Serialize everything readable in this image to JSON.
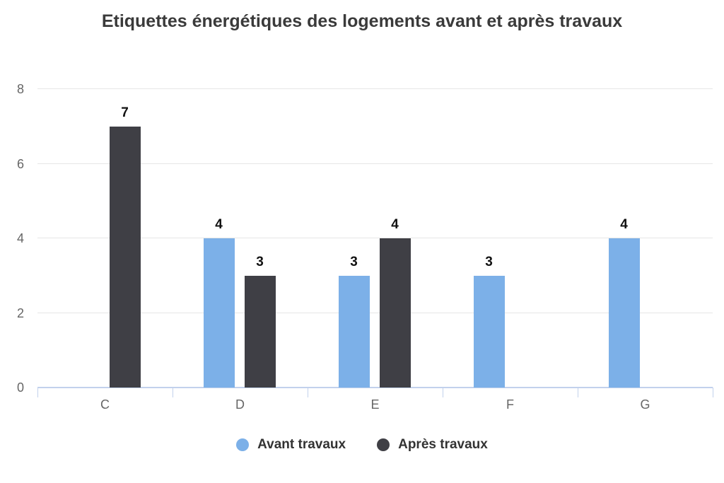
{
  "chart_data": {
    "type": "bar",
    "title": "Etiquettes énergétiques des logements avant et après travaux",
    "categories": [
      "C",
      "D",
      "E",
      "F",
      "G"
    ],
    "series": [
      {
        "name": "Avant travaux",
        "color": "#7cb0e8",
        "values": [
          null,
          4,
          3,
          3,
          4
        ]
      },
      {
        "name": "Après travaux",
        "color": "#3f3f45",
        "values": [
          7,
          3,
          4,
          null,
          null
        ]
      }
    ],
    "ylim": [
      0,
      8
    ],
    "yticks": [
      0,
      2,
      4,
      6,
      8
    ],
    "xlabel": "",
    "ylabel": "",
    "grid": true,
    "data_labels": true,
    "legend_position": "bottom"
  },
  "colors": {
    "grid": "#e6e6e6",
    "axis": "#c2d1ec",
    "axis_label": "#666666",
    "title": "#3a3a3a",
    "data_label": "#111111",
    "legend_text": "#333333",
    "background": "#ffffff"
  }
}
